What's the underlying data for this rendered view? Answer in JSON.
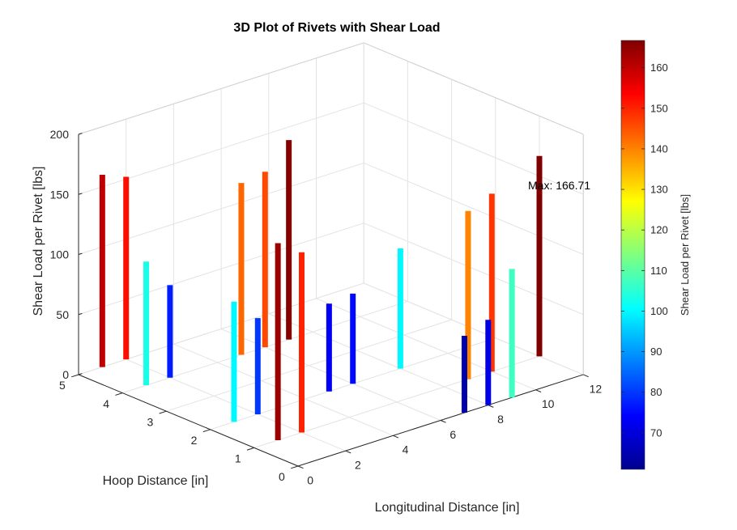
{
  "chart_data": {
    "type": "bar3d-stem",
    "title": "3D Plot of Rivets with Shear Load",
    "xlabel": "Longitudinal Distance [in]",
    "ylabel": "Hoop Distance [in]",
    "zlabel": "Shear Load per Rivet [lbs]",
    "xlim": [
      0,
      12
    ],
    "ylim": [
      0,
      5
    ],
    "zlim": [
      0,
      200
    ],
    "xticks": [
      "0",
      "2",
      "4",
      "6",
      "8",
      "10",
      "12"
    ],
    "yticks": [
      "0",
      "1",
      "2",
      "3",
      "4",
      "5"
    ],
    "zticks": [
      "0",
      "50",
      "100",
      "150",
      "200"
    ],
    "grid": true,
    "colormap": "jet",
    "colorbar": {
      "label": "Shear Load per Rivet [lbs]",
      "range": [
        61,
        166.71
      ],
      "ticks": [
        "70",
        "80",
        "90",
        "100",
        "110",
        "120",
        "130",
        "140",
        "150",
        "160"
      ]
    },
    "annotation": "Max: 166.71",
    "points": [
      {
        "x": 1,
        "y": 1,
        "z": 164
      },
      {
        "x": 2,
        "y": 1,
        "z": 150
      },
      {
        "x": 1,
        "y": 2,
        "z": 100
      },
      {
        "x": 2,
        "y": 2,
        "z": 80
      },
      {
        "x": 1,
        "y": 4,
        "z": 103
      },
      {
        "x": 2,
        "y": 4,
        "z": 77
      },
      {
        "x": 1,
        "y": 5,
        "z": 160
      },
      {
        "x": 2,
        "y": 5,
        "z": 152
      },
      {
        "x": 5,
        "y": 4,
        "z": 143
      },
      {
        "x": 6,
        "y": 4,
        "z": 146
      },
      {
        "x": 7,
        "y": 4,
        "z": 166
      },
      {
        "x": 5,
        "y": 2,
        "z": 73
      },
      {
        "x": 6,
        "y": 2,
        "z": 75
      },
      {
        "x": 8,
        "y": 2,
        "z": 100
      },
      {
        "x": 7,
        "y": 0,
        "z": 64
      },
      {
        "x": 8,
        "y": 0,
        "z": 71
      },
      {
        "x": 9,
        "y": 0,
        "z": 107
      },
      {
        "x": 9,
        "y": 1,
        "z": 140
      },
      {
        "x": 10,
        "y": 1,
        "z": 148
      },
      {
        "x": 12,
        "y": 1,
        "z": 166.71
      }
    ]
  }
}
